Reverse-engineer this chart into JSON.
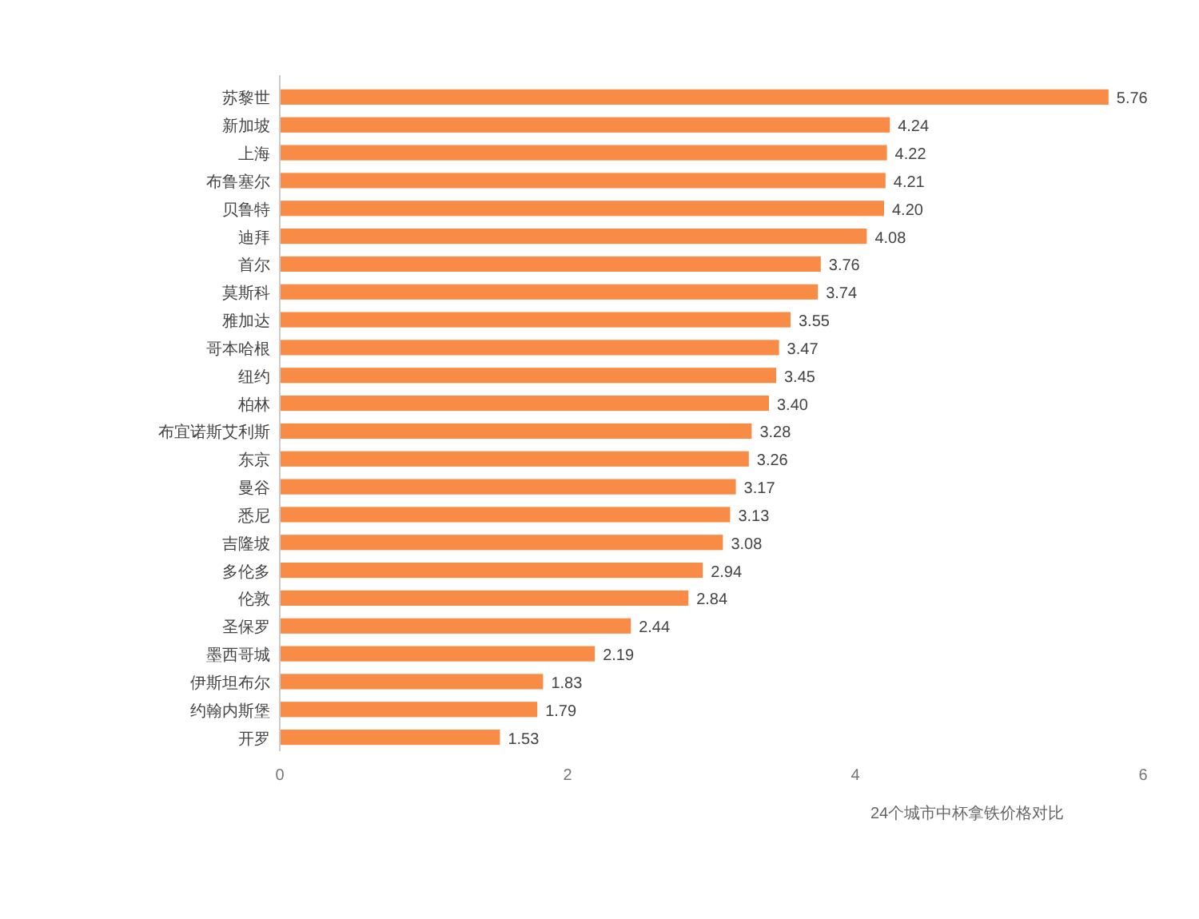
{
  "chart_data": {
    "type": "bar",
    "orientation": "horizontal",
    "xlabel": "24个城市中杯拿铁价格对比",
    "categories": [
      "苏黎世",
      "新加坡",
      "上海",
      "布鲁塞尔",
      "贝鲁特",
      "迪拜",
      "首尔",
      "莫斯科",
      "雅加达",
      "哥本哈根",
      "纽约",
      "柏林",
      "布宜诺斯艾利斯",
      "东京",
      "曼谷",
      "悉尼",
      "吉隆坡",
      "多伦多",
      "伦敦",
      "圣保罗",
      "墨西哥城",
      "伊斯坦布尔",
      "约翰内斯堡",
      "开罗"
    ],
    "values": [
      5.76,
      4.24,
      4.22,
      4.21,
      4.2,
      4.08,
      3.76,
      3.74,
      3.55,
      3.47,
      3.45,
      3.4,
      3.28,
      3.26,
      3.17,
      3.13,
      3.08,
      2.94,
      2.84,
      2.44,
      2.19,
      1.83,
      1.79,
      1.53
    ],
    "value_labels": [
      "5.76",
      "4.24",
      "4.22",
      "4.21",
      "4.20",
      "4.08",
      "3.76",
      "3.74",
      "3.55",
      "3.47",
      "3.45",
      "3.40",
      "3.28",
      "3.26",
      "3.17",
      "3.13",
      "3.08",
      "2.94",
      "2.84",
      "2.44",
      "2.19",
      "1.83",
      "1.79",
      "1.53"
    ],
    "color": "#f88b45",
    "xlim": [
      0,
      6
    ],
    "xticks": [
      0,
      2,
      4,
      6
    ],
    "grid": false
  }
}
